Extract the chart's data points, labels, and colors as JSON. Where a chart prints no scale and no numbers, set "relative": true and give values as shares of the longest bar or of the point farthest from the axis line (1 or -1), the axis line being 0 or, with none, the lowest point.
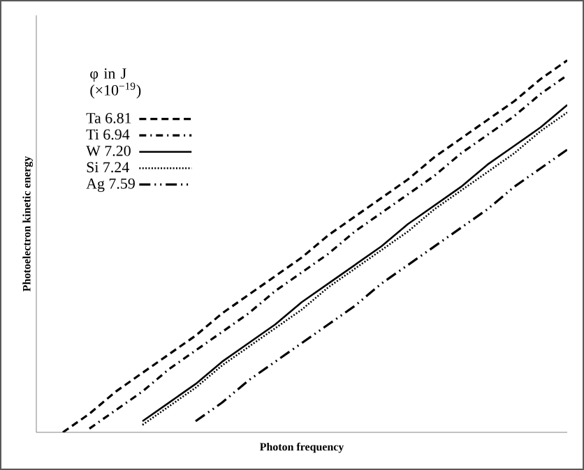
{
  "chart_data": {
    "type": "line",
    "relative": true,
    "xlabel": "Photon frequency",
    "ylabel": "Photoelectron  kinetic energy",
    "legend_title": "φ in J (×10$^{−19}$)",
    "categories": [
      null,
      null,
      null,
      null,
      null,
      null,
      null,
      null,
      null,
      null,
      null,
      null,
      null,
      null,
      null,
      null,
      null,
      null,
      null,
      null,
      null
    ],
    "legend": "top left",
    "marker": "none",
    "series": [
      {
        "name": "Ta 6.81",
        "color": "#000000",
        "line_style": "dashed",
        "values": [
          null,
          0,
          0.05,
          0.11,
          0.16,
          0.21,
          0.26,
          0.32,
          0.37,
          0.42,
          0.47,
          0.53,
          0.58,
          0.63,
          0.68,
          0.74,
          0.79,
          0.84,
          0.89,
          0.95,
          1
        ]
      },
      {
        "name": "Ti 6.94",
        "color": "#000000",
        "line_style": "dashdot",
        "values": [
          null,
          null,
          0.01,
          0.06,
          0.11,
          0.17,
          0.22,
          0.27,
          0.32,
          0.38,
          0.43,
          0.48,
          0.54,
          0.59,
          0.64,
          0.69,
          0.75,
          0.8,
          0.85,
          0.91,
          0.96
        ]
      },
      {
        "name": "W 7.20",
        "color": "#000000",
        "line_style": "solid",
        "values": [
          null,
          null,
          null,
          null,
          0.03,
          0.08,
          0.13,
          0.19,
          0.24,
          0.29,
          0.35,
          0.4,
          0.45,
          0.5,
          0.56,
          0.61,
          0.66,
          0.72,
          0.77,
          0.82,
          0.88
        ]
      },
      {
        "name": "Si 7.24",
        "color": "#000000",
        "line_style": "dotted",
        "values": [
          null,
          null,
          null,
          null,
          0.02,
          0.07,
          0.12,
          0.18,
          0.23,
          0.28,
          0.33,
          0.39,
          0.44,
          0.49,
          0.54,
          0.6,
          0.65,
          0.7,
          0.75,
          0.81,
          0.86
        ]
      },
      {
        "name": "Ag 7.59",
        "color": "#000000",
        "line_style": "dashdotdot",
        "values": [
          null,
          null,
          null,
          null,
          null,
          null,
          0.03,
          0.08,
          0.14,
          0.19,
          0.24,
          0.29,
          0.34,
          0.4,
          0.45,
          0.5,
          0.55,
          0.6,
          0.66,
          0.71,
          0.76
        ]
      }
    ]
  }
}
